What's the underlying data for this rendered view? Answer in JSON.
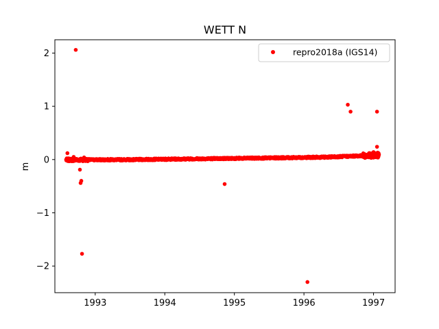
{
  "chart_data": {
    "type": "scatter",
    "title": "WETT N",
    "xlabel": "",
    "ylabel": "m",
    "xlim": [
      1992.42,
      1997.31
    ],
    "ylim": [
      -2.5,
      2.25
    ],
    "xticks": [
      1993,
      1994,
      1995,
      1996,
      1997
    ],
    "yticks": [
      -2,
      -1,
      0,
      1,
      2
    ],
    "ytick_labels": [
      "−2",
      "−1",
      "0",
      "1",
      "2"
    ],
    "grid": false,
    "legend_position": "upper-right",
    "marker_color": "#ff0000",
    "series": [
      {
        "name": "repro2018a (IGS14)",
        "color": "#ff0000",
        "points": [
          {
            "x": 1992.6,
            "y": 0.12
          },
          {
            "x": 1992.72,
            "y": 2.06
          },
          {
            "x": 1992.78,
            "y": -0.19
          },
          {
            "x": 1992.8,
            "y": -0.4
          },
          {
            "x": 1992.79,
            "y": -0.44
          },
          {
            "x": 1992.81,
            "y": -1.77
          },
          {
            "x": 1994.86,
            "y": -0.46
          },
          {
            "x": 1996.05,
            "y": -2.3
          },
          {
            "x": 1996.63,
            "y": 1.03
          },
          {
            "x": 1996.67,
            "y": 0.9
          },
          {
            "x": 1997.05,
            "y": 0.9
          },
          {
            "x": 1997.05,
            "y": 0.24
          },
          {
            "x": 1997.06,
            "y": 0.13
          },
          {
            "x": 1992.69,
            "y": 0.05
          },
          {
            "x": 1992.84,
            "y": 0.04
          },
          {
            "x": 1997.0,
            "y": 0.14
          }
        ],
        "trend": [
          {
            "x": 1992.58,
            "y": -0.005
          },
          {
            "x": 1993.5,
            "y": -0.002
          },
          {
            "x": 1994.5,
            "y": 0.015
          },
          {
            "x": 1995.5,
            "y": 0.03
          },
          {
            "x": 1996.3,
            "y": 0.045
          },
          {
            "x": 1996.8,
            "y": 0.07
          },
          {
            "x": 1997.08,
            "y": 0.08
          }
        ]
      }
    ]
  }
}
